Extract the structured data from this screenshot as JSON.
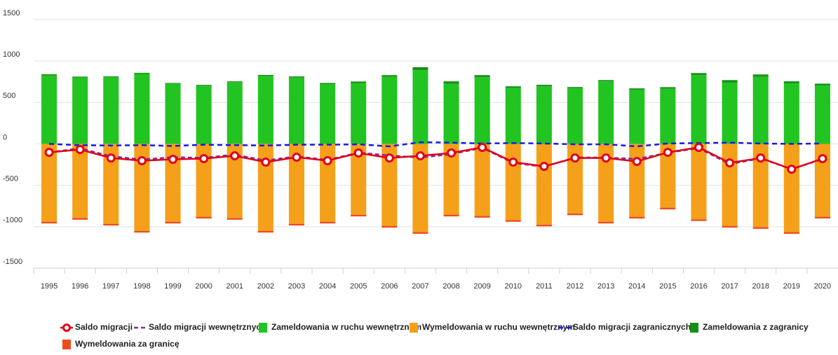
{
  "chart_data": {
    "type": "combo",
    "categories": [
      "1995",
      "1996",
      "1997",
      "1998",
      "1999",
      "2000",
      "2001",
      "2002",
      "2003",
      "2004",
      "2005",
      "2006",
      "2007",
      "2008",
      "2009",
      "2010",
      "2011",
      "2012",
      "2013",
      "2014",
      "2015",
      "2016",
      "2017",
      "2018",
      "2019",
      "2020"
    ],
    "ylim": [
      -1500,
      1500
    ],
    "yticks": [
      -1500,
      -1000,
      -500,
      0,
      500,
      1000,
      1500
    ],
    "grid": true,
    "legend": "bottom",
    "series": [
      {
        "name": "Saldo migracji",
        "type": "line",
        "color": "#e0001a",
        "markers": true,
        "values": [
          -102,
          -68,
          -170,
          -203,
          -186,
          -178,
          -144,
          -220,
          -161,
          -203,
          -110,
          -170,
          -144,
          -110,
          -42,
          -220,
          -271,
          -170,
          -170,
          -212,
          -102,
          -42,
          -229,
          -170,
          -305,
          -178
        ]
      },
      {
        "name": "Saldo migracji wewnętrznych",
        "type": "line",
        "color": "#8a2a9a",
        "dash": "6,4",
        "values": [
          -102,
          -53,
          -150,
          -188,
          -161,
          -168,
          -129,
          -200,
          -151,
          -193,
          -105,
          -140,
          -164,
          -125,
          -47,
          -230,
          -276,
          -165,
          -165,
          -182,
          -107,
          -52,
          -244,
          -175,
          -305,
          -183
        ]
      },
      {
        "name": "Zameldowania w ruchu wewnętrznym",
        "type": "bar",
        "color": "#22c422",
        "values": [
          825,
          800,
          805,
          845,
          725,
          700,
          745,
          820,
          800,
          720,
          735,
          810,
          890,
          725,
          805,
          675,
          695,
          670,
          755,
          655,
          665,
          830,
          740,
          810,
          730,
          705
        ]
      },
      {
        "name": "Wymeldowania w ruchu wewnętrznym",
        "type": "bar",
        "color": "#f5a01a",
        "values": [
          -940,
          -895,
          -965,
          -1050,
          -940,
          -880,
          -895,
          -1050,
          -965,
          -940,
          -855,
          -990,
          -1065,
          -855,
          -870,
          -920,
          -975,
          -840,
          -940,
          -880,
          -770,
          -910,
          -990,
          -1005,
          -1065,
          -880
        ]
      },
      {
        "name": "Saldo migracji zagranicznych",
        "type": "line",
        "color": "#1a1ae0",
        "dash": "7,5",
        "values": [
          0,
          -15,
          -20,
          -15,
          -25,
          -10,
          -15,
          -20,
          -10,
          -10,
          -5,
          -30,
          20,
          15,
          5,
          10,
          5,
          -5,
          -5,
          -30,
          5,
          10,
          15,
          5,
          0,
          5
        ]
      },
      {
        "name": "Zameldowania z zagranicy",
        "type": "bar",
        "color": "#178f17",
        "values": [
          15,
          12,
          10,
          12,
          10,
          12,
          10,
          12,
          14,
          15,
          18,
          20,
          35,
          30,
          25,
          20,
          18,
          16,
          15,
          15,
          20,
          25,
          30,
          28,
          25,
          22
        ]
      },
      {
        "name": "Wymeldowania za granicę",
        "type": "bar",
        "color": "#f04a1c",
        "values": [
          -20,
          -20,
          -20,
          -20,
          -20,
          -20,
          -20,
          -20,
          -20,
          -20,
          -20,
          -20,
          -20,
          -20,
          -20,
          -20,
          -20,
          -20,
          -20,
          -20,
          -20,
          -20,
          -20,
          -20,
          -20,
          -20
        ]
      }
    ]
  }
}
